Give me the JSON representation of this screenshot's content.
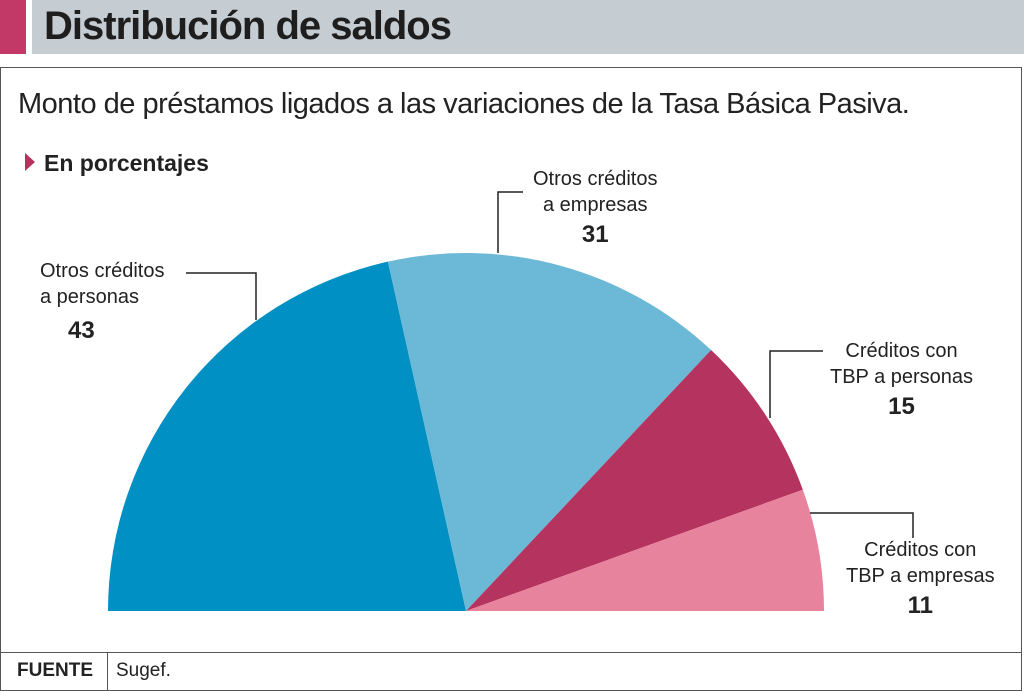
{
  "header": {
    "title": "Distribución de saldos"
  },
  "chart_data": {
    "type": "pie",
    "variant": "semicircle",
    "title": "Distribución de saldos",
    "subtitle": "Monto de préstamos ligados a las variaciones de la Tasa Básica Pasiva.",
    "unit_label": "En porcentajes",
    "slices": [
      {
        "line1": "Otros créditos",
        "line2": "a personas",
        "value": 43,
        "color": "#0090c4"
      },
      {
        "line1": "Otros créditos",
        "line2": "a empresas",
        "value": 31,
        "color": "#6cb9d7"
      },
      {
        "line1": "Créditos con",
        "line2": "TBP a personas",
        "value": 15,
        "color": "#b5335f"
      },
      {
        "line1": "Créditos con",
        "line2": "TBP a empresas",
        "value": 11,
        "color": "#e8839e"
      }
    ]
  },
  "footer": {
    "source_label": "FUENTE",
    "source_value": "Sugef."
  }
}
